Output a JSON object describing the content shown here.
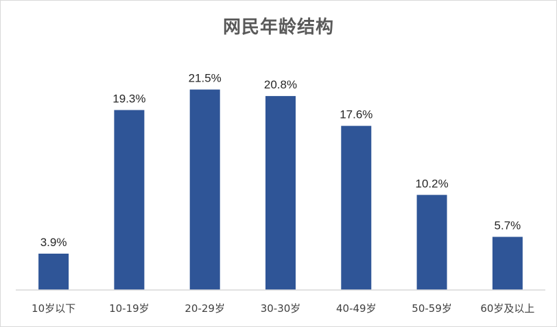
{
  "chart_data": {
    "type": "bar",
    "title": "网民年龄结构",
    "categories": [
      "10岁以下",
      "10-19岁",
      "20-29岁",
      "30-30岁",
      "40-49岁",
      "50-59岁",
      "60岁及以上"
    ],
    "values": [
      3.9,
      19.3,
      21.5,
      20.8,
      17.6,
      10.2,
      5.7
    ],
    "value_labels": [
      "3.9%",
      "19.3%",
      "21.5%",
      "20.8%",
      "17.6%",
      "10.2%",
      "5.7%"
    ],
    "ylim": [
      0,
      25
    ],
    "grid": false,
    "legend": "none",
    "bar_color": "#2F5597",
    "axis_color": "#D9D9D9"
  }
}
